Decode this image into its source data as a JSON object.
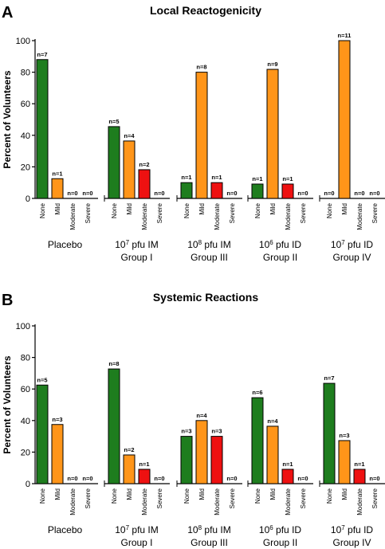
{
  "colors": {
    "None": "#1e7d1e",
    "Mild": "#ff9519",
    "Moderate": "#ee1111",
    "Severe": "#888888"
  },
  "chart_data": [
    {
      "type": "bar",
      "panel_label": "A",
      "title": "Local Reactogenicity",
      "xlabel": "",
      "ylabel": "Percent of Volunteers",
      "ylim": [
        0,
        100
      ],
      "yticks": [
        0,
        20,
        40,
        60,
        80,
        100
      ],
      "grid": false,
      "legend": "none",
      "severity_labels": [
        "None",
        "Mild",
        "Moderate",
        "Severe"
      ],
      "groups": [
        {
          "line1": "Placebo",
          "line1_sup": "",
          "line1_rest": "",
          "line2": "",
          "values": [
            88,
            12.5,
            0,
            0
          ],
          "counts": [
            "n=7",
            "n=1",
            "n=0",
            "n=0"
          ]
        },
        {
          "line1": "10",
          "line1_sup": "7",
          "line1_rest": " pfu IM",
          "line2": "Group I",
          "values": [
            45.5,
            36.4,
            18.2,
            0
          ],
          "counts": [
            "n=5",
            "n=4",
            "n=2",
            "n=0"
          ]
        },
        {
          "line1": "10",
          "line1_sup": "8",
          "line1_rest": " pfu IM",
          "line2": "Group III",
          "values": [
            10,
            80,
            10,
            0
          ],
          "counts": [
            "n=1",
            "n=8",
            "n=1",
            "n=0"
          ]
        },
        {
          "line1": "10",
          "line1_sup": "6",
          "line1_rest": " pfu ID",
          "line2": "Group II",
          "values": [
            9.1,
            81.8,
            9.1,
            0
          ],
          "counts": [
            "n=1",
            "n=9",
            "n=1",
            "n=0"
          ]
        },
        {
          "line1": "10",
          "line1_sup": "7",
          "line1_rest": " pfu ID",
          "line2": "Group IV",
          "values": [
            0,
            100,
            0,
            0
          ],
          "counts": [
            "n=0",
            "n=11",
            "n=0",
            "n=0"
          ]
        }
      ]
    },
    {
      "type": "bar",
      "panel_label": "B",
      "title": "Systemic Reactions",
      "xlabel": "",
      "ylabel": "Percent of Volunteers",
      "ylim": [
        0,
        100
      ],
      "yticks": [
        0,
        20,
        40,
        60,
        80,
        100
      ],
      "grid": false,
      "legend": "none",
      "severity_labels": [
        "None",
        "Mild",
        "Moderate",
        "Severe"
      ],
      "groups": [
        {
          "line1": "Placebo",
          "line1_sup": "",
          "line1_rest": "",
          "line2": "",
          "values": [
            62.5,
            37.5,
            0,
            0
          ],
          "counts": [
            "n=5",
            "n=3",
            "n=0",
            "n=0"
          ]
        },
        {
          "line1": "10",
          "line1_sup": "7",
          "line1_rest": " pfu IM",
          "line2": "Group I",
          "values": [
            72.7,
            18.2,
            9.1,
            0
          ],
          "counts": [
            "n=8",
            "n=2",
            "n=1",
            "n=0"
          ]
        },
        {
          "line1": "10",
          "line1_sup": "8",
          "line1_rest": " pfu IM",
          "line2": "Group III",
          "values": [
            30,
            40,
            30,
            0
          ],
          "counts": [
            "n=3",
            "n=4",
            "n=3",
            "n=0"
          ]
        },
        {
          "line1": "10",
          "line1_sup": "6",
          "line1_rest": " pfu ID",
          "line2": "Group II",
          "values": [
            54.5,
            36.4,
            9.1,
            0
          ],
          "counts": [
            "n=6",
            "n=4",
            "n=1",
            "n=0"
          ]
        },
        {
          "line1": "10",
          "line1_sup": "7",
          "line1_rest": " pfu ID",
          "line2": "Group IV",
          "values": [
            63.6,
            27.3,
            9.1,
            0
          ],
          "counts": [
            "n=7",
            "n=3",
            "n=1",
            "n=0"
          ]
        }
      ]
    }
  ]
}
